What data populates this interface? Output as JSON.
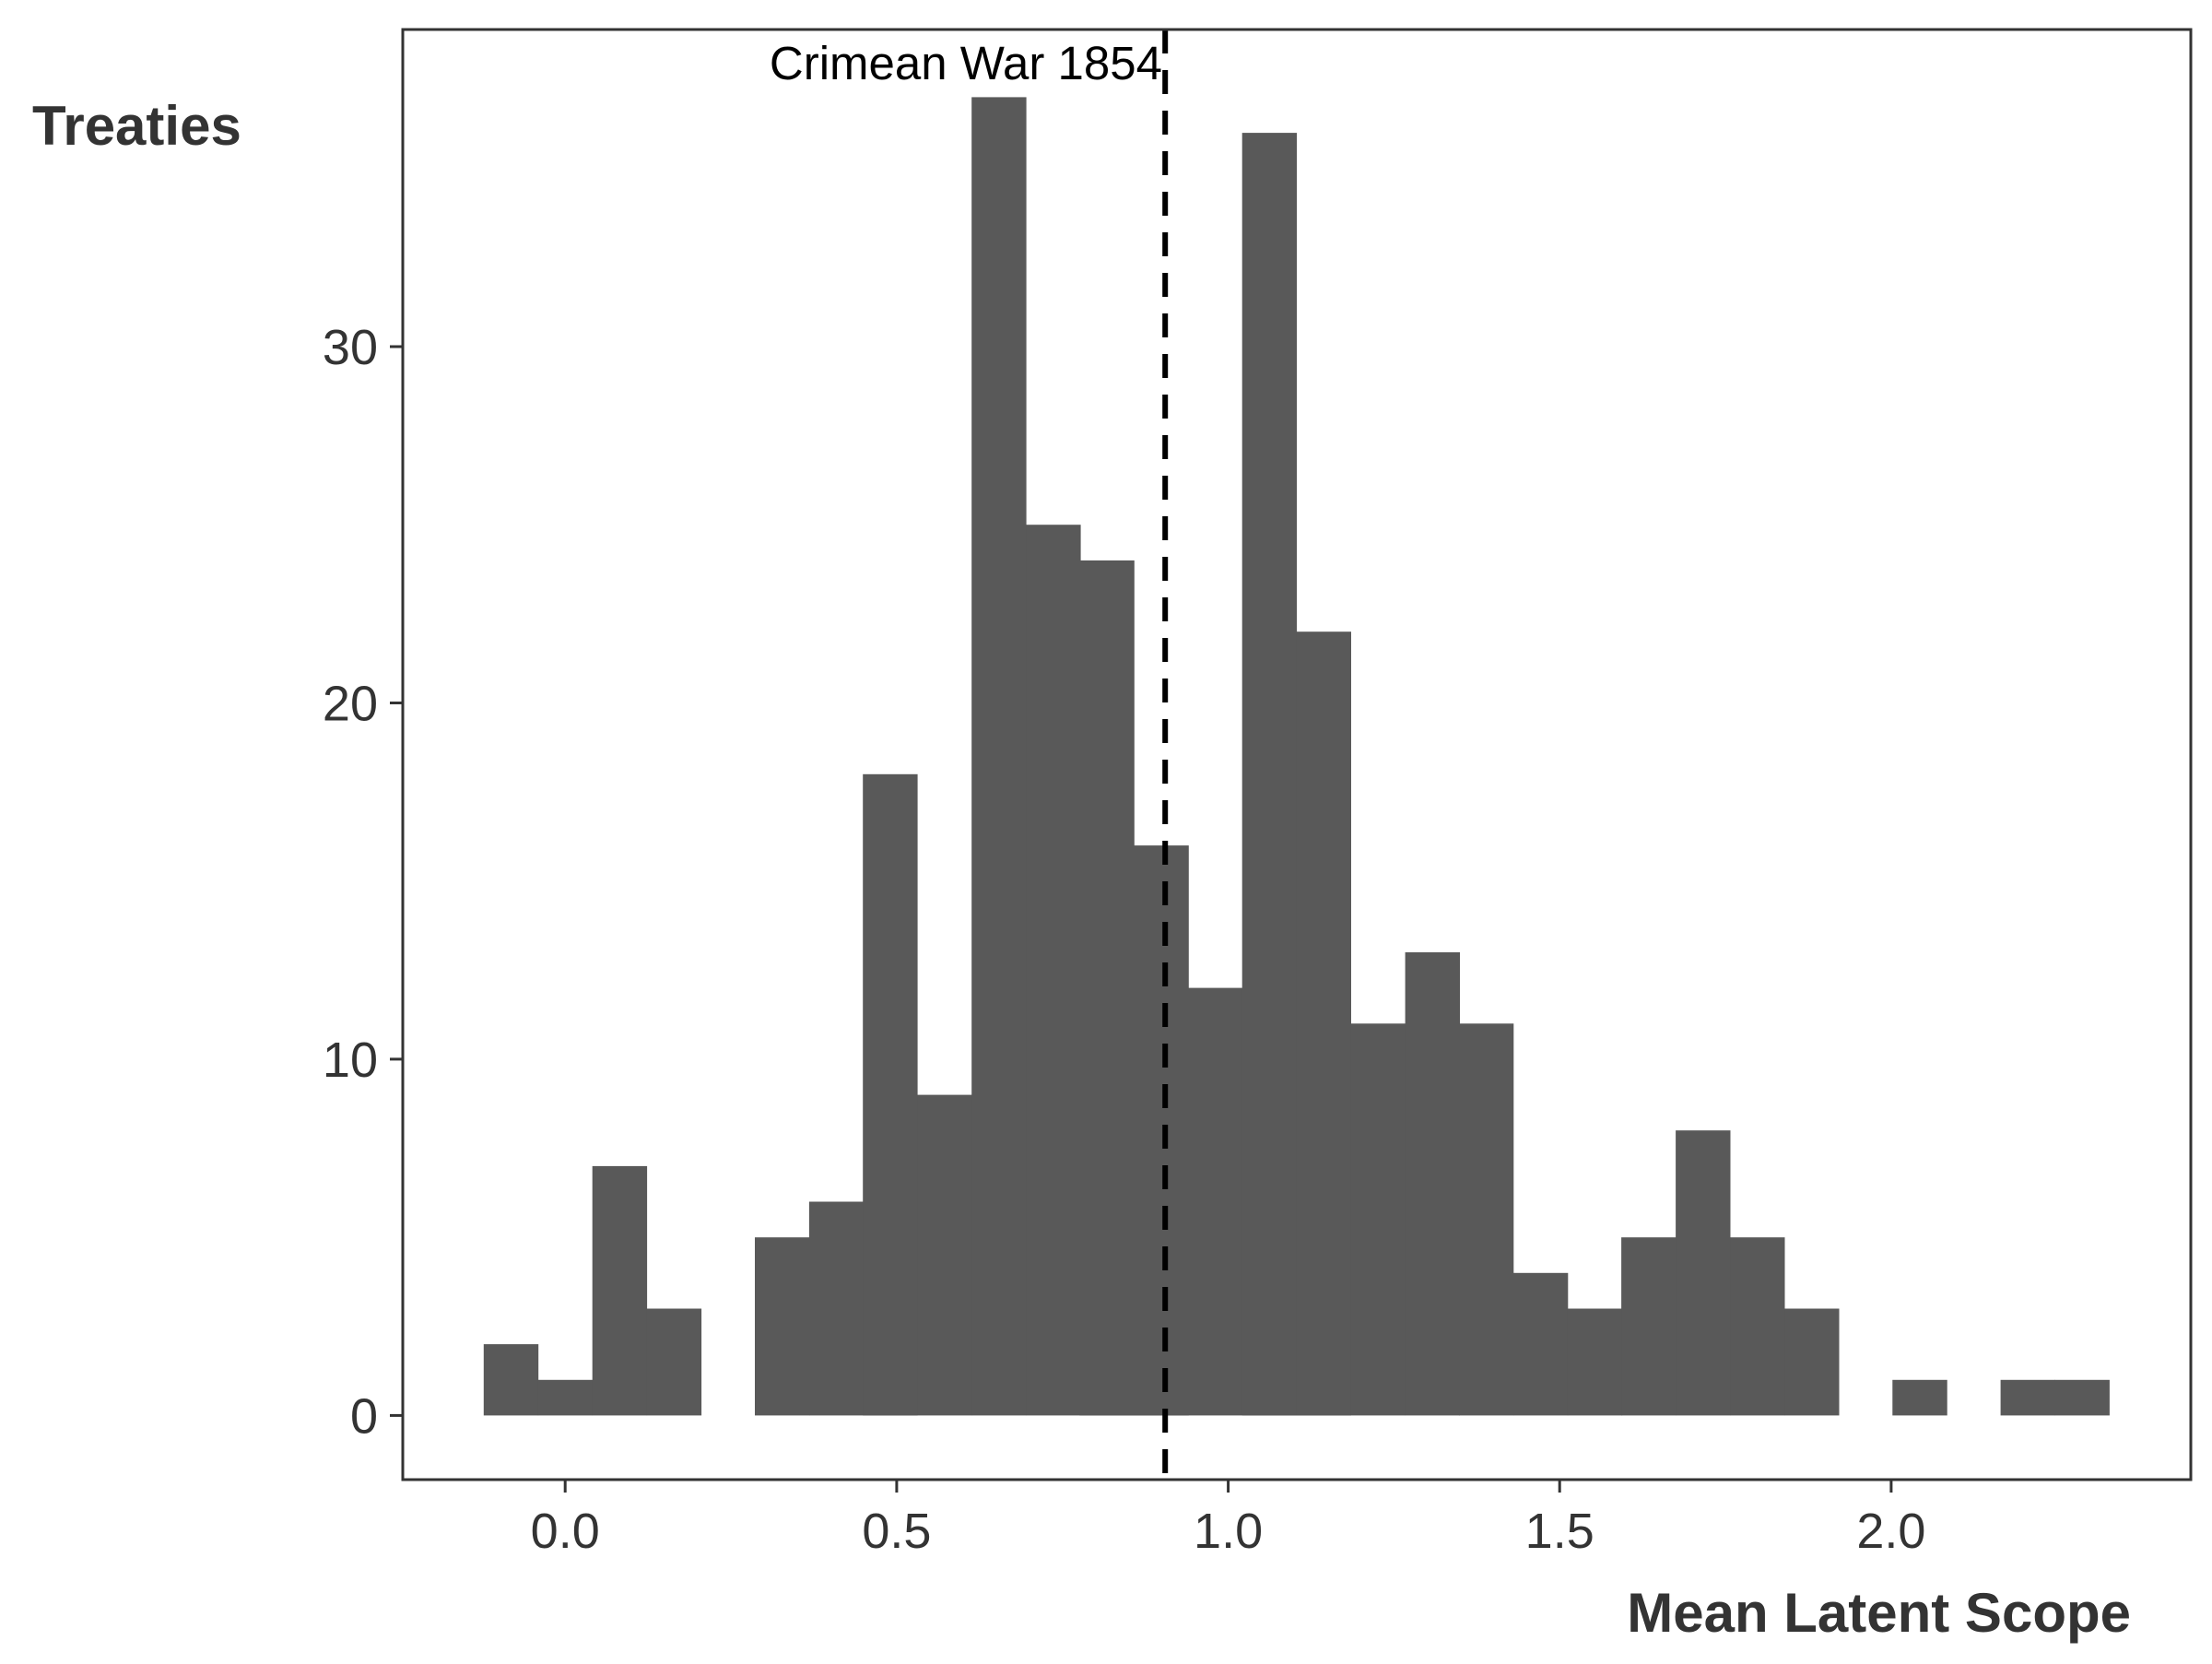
{
  "chart_data": {
    "type": "bar",
    "title": "",
    "xlabel": "Mean Latent Scope",
    "ylabel": "Treaties",
    "xlim": [
      -0.245,
      2.452
    ],
    "ylim": [
      -1.8,
      38.9
    ],
    "x_ticks": [
      0.0,
      0.5,
      1.0,
      1.5,
      2.0
    ],
    "x_tick_labels": [
      "0.0",
      "0.5",
      "1.0",
      "1.5",
      "2.0"
    ],
    "y_ticks": [
      0,
      10,
      20,
      30
    ],
    "y_tick_labels": [
      "0",
      "10",
      "20",
      "30"
    ],
    "grid": false,
    "bin_width": 0.0817,
    "bins": [
      {
        "x_start": -0.123,
        "count": 2
      },
      {
        "x_start": -0.041,
        "count": 1
      },
      {
        "x_start": 0.041,
        "count": 7
      },
      {
        "x_start": 0.123,
        "count": 3
      },
      {
        "x_start": 0.204,
        "count": 0
      },
      {
        "x_start": 0.286,
        "count": 5
      },
      {
        "x_start": 0.368,
        "count": 6
      },
      {
        "x_start": 0.449,
        "count": 18
      },
      {
        "x_start": 0.531,
        "count": 9
      },
      {
        "x_start": 0.613,
        "count": 37
      },
      {
        "x_start": 0.695,
        "count": 25
      },
      {
        "x_start": 0.776,
        "count": 24
      },
      {
        "x_start": 0.858,
        "count": 16
      },
      {
        "x_start": 0.94,
        "count": 12
      },
      {
        "x_start": 1.021,
        "count": 36
      },
      {
        "x_start": 1.103,
        "count": 22
      },
      {
        "x_start": 1.185,
        "count": 11
      },
      {
        "x_start": 1.267,
        "count": 13
      },
      {
        "x_start": 1.348,
        "count": 11
      },
      {
        "x_start": 1.43,
        "count": 4
      },
      {
        "x_start": 1.512,
        "count": 3
      },
      {
        "x_start": 1.593,
        "count": 5
      },
      {
        "x_start": 1.675,
        "count": 8
      },
      {
        "x_start": 1.757,
        "count": 5
      },
      {
        "x_start": 1.839,
        "count": 3
      },
      {
        "x_start": 1.92,
        "count": 0
      },
      {
        "x_start": 2.002,
        "count": 1
      },
      {
        "x_start": 2.084,
        "count": 0
      },
      {
        "x_start": 2.165,
        "count": 1
      },
      {
        "x_start": 2.247,
        "count": 1
      }
    ],
    "reference_line": {
      "x": 0.905,
      "style": "dashed",
      "label": "Crimean War 1854"
    },
    "colors": {
      "bar": "#595959",
      "line": "#000000",
      "axis": "#333333"
    }
  }
}
